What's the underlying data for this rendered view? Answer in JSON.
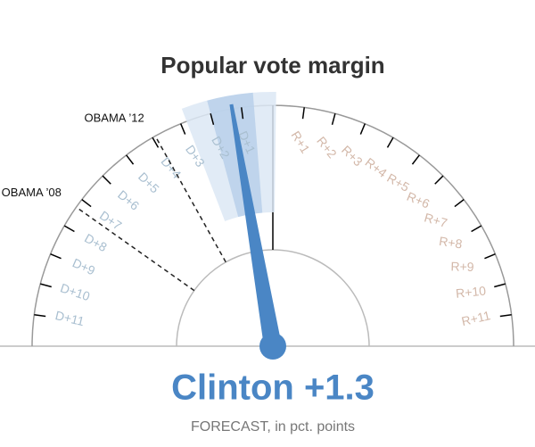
{
  "chart_data": {
    "type": "gauge",
    "title": "Popular vote margin",
    "xlim": [
      -12,
      12
    ],
    "xticks": [
      {
        "value": -11,
        "label": "D+11"
      },
      {
        "value": -10,
        "label": "D+10"
      },
      {
        "value": -9,
        "label": "D+9"
      },
      {
        "value": -8,
        "label": "D+8"
      },
      {
        "value": -7,
        "label": "D+7"
      },
      {
        "value": -6,
        "label": "D+6"
      },
      {
        "value": -5,
        "label": "D+5"
      },
      {
        "value": -4,
        "label": "D+4"
      },
      {
        "value": -3,
        "label": "D+3"
      },
      {
        "value": -2,
        "label": "D+2"
      },
      {
        "value": -1,
        "label": "D+1"
      },
      {
        "value": 1,
        "label": "R+1"
      },
      {
        "value": 2,
        "label": "R+2"
      },
      {
        "value": 3,
        "label": "R+3"
      },
      {
        "value": 4,
        "label": "R+4"
      },
      {
        "value": 5,
        "label": "R+5"
      },
      {
        "value": 6,
        "label": "R+6"
      },
      {
        "value": 7,
        "label": "R+7"
      },
      {
        "value": 8,
        "label": "R+8"
      },
      {
        "value": 9,
        "label": "R+9"
      },
      {
        "value": 10,
        "label": "R+10"
      },
      {
        "value": 11,
        "label": "R+11"
      }
    ],
    "left_color": "#a9bfd0",
    "right_color": "#d3b8a9",
    "values": [
      -1.3
    ],
    "value_labels": [
      "Clinton +1.3"
    ],
    "color": "#4a86c5",
    "bands": [
      {
        "range": [
          -2.8,
          0.1
        ],
        "color": "#dce8f4"
      },
      {
        "range": [
          -2.0,
          -0.6
        ],
        "color": "#b9d0ea"
      }
    ],
    "markers": [
      {
        "label": "OBAMA ’12",
        "value": -3.9
      },
      {
        "label": "OBAMA ’08",
        "value": -7.3
      }
    ],
    "caption": {
      "bold": "FORECAST",
      "rest": ", in pct. points"
    }
  }
}
